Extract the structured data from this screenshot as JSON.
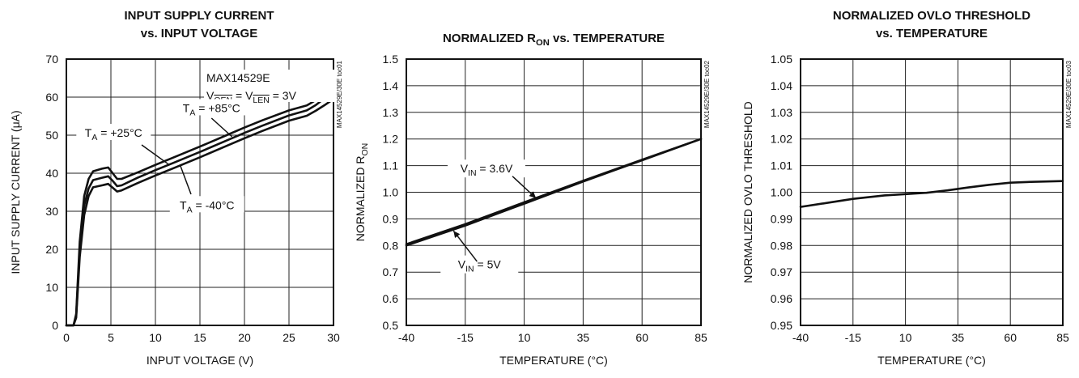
{
  "chart_data": [
    {
      "type": "line",
      "title": "INPUT SUPPLY CURRENT",
      "subtitle": "vs. INPUT VOLTAGE",
      "xlabel": "INPUT VOLTAGE (V)",
      "ylabel": "INPUT SUPPLY CURRENT (μA)",
      "xlim": [
        0,
        30
      ],
      "ylim": [
        0,
        70
      ],
      "xticks": [
        "0",
        "5",
        "10",
        "15",
        "20",
        "25",
        "30"
      ],
      "yticks": [
        "0",
        "10",
        "20",
        "30",
        "40",
        "50",
        "60",
        "70"
      ],
      "grid": true,
      "side_id": "MAX14529E/30E toc01",
      "device_label": "MAX14529E",
      "condition_label": "VOEN = VLEN = 3V",
      "series": [
        {
          "name": "TA = +85°C",
          "x": [
            0,
            0.8,
            1.1,
            1.5,
            2,
            2.5,
            3,
            4,
            4.7,
            5.2,
            5.7,
            6.2,
            8,
            10,
            12,
            15,
            18,
            20,
            22,
            25,
            27,
            28,
            29,
            30
          ],
          "y": [
            0,
            0,
            3,
            22,
            34,
            38.5,
            40.5,
            41.2,
            41.5,
            40,
            38.5,
            38.5,
            40.2,
            42.2,
            44.1,
            47,
            50,
            52,
            53.9,
            56.5,
            57.8,
            59.2,
            61.2,
            63.5
          ]
        },
        {
          "name": "TA = +25°C",
          "x": [
            0,
            0.8,
            1.1,
            1.5,
            2,
            2.5,
            3,
            4,
            4.7,
            5.2,
            5.7,
            6.2,
            8,
            10,
            12,
            15,
            18,
            20,
            22,
            25,
            27,
            28,
            29,
            30
          ],
          "y": [
            0,
            0,
            2.5,
            20,
            31.5,
            36,
            38.2,
            38.8,
            39.2,
            38,
            36.6,
            36.8,
            38.8,
            40.8,
            42.7,
            45.6,
            48.6,
            50.6,
            52.5,
            55.2,
            56.5,
            57.9,
            59.7,
            61.7
          ]
        },
        {
          "name": "TA = -40°C",
          "x": [
            0,
            0.8,
            1.1,
            1.5,
            2,
            2.5,
            3,
            4,
            4.7,
            5.2,
            5.7,
            6.2,
            8,
            10,
            12,
            15,
            18,
            20,
            22,
            25,
            27,
            28,
            29,
            30
          ],
          "y": [
            0,
            0,
            2,
            18,
            29,
            34,
            36.3,
            36.8,
            37.2,
            36.2,
            35.2,
            35.5,
            37.4,
            39.4,
            41.3,
            44.2,
            47.2,
            49.2,
            51.1,
            53.8,
            55.1,
            56.4,
            57.9,
            59.5
          ]
        }
      ],
      "labels": [
        {
          "text": "TA = +85°C",
          "x": 16.3,
          "y": 56.5
        },
        {
          "text": "TA = +25°C",
          "x": 5.3,
          "y": 50
        },
        {
          "text": "TA = -40°C",
          "x": 15.8,
          "y": 31
        }
      ]
    },
    {
      "type": "line",
      "title": "NORMALIZED RON vs. TEMPERATURE",
      "xlabel": "TEMPERATURE (°C)",
      "ylabel": "NORMALIZED RON",
      "xlim": [
        -40,
        85
      ],
      "ylim": [
        0.5,
        1.5
      ],
      "xticks": [
        "-40",
        "-15",
        "10",
        "35",
        "60",
        "85"
      ],
      "yticks": [
        "0.5",
        "0.6",
        "0.7",
        "0.8",
        "0.9",
        "1.0",
        "1.1",
        "1.2",
        "1.3",
        "1.4",
        "1.5"
      ],
      "grid": true,
      "side_id": "MAX14529E/30E toc02",
      "series": [
        {
          "name": "VIN = 3.6V",
          "x": [
            -40,
            -15,
            10,
            35,
            60,
            85
          ],
          "y": [
            0.805,
            0.88,
            0.962,
            1.043,
            1.122,
            1.2
          ]
        },
        {
          "name": "VIN = 5V",
          "x": [
            -40,
            -15,
            10,
            35,
            60,
            85
          ],
          "y": [
            0.8,
            0.875,
            0.957,
            1.04,
            1.12,
            1.2
          ]
        }
      ],
      "labels": [
        {
          "text": "VIN = 3.6V",
          "x": -6,
          "y": 1.08
        },
        {
          "text": "VIN = 5V",
          "x": -9,
          "y": 0.72
        }
      ]
    },
    {
      "type": "line",
      "title": "NORMALIZED OVLO THRESHOLD",
      "subtitle": "vs. TEMPERATURE",
      "xlabel": "TEMPERATURE (°C)",
      "ylabel": "NORMALIZED OVLO THRESHOLD",
      "xlim": [
        -40,
        85
      ],
      "ylim": [
        0.95,
        1.05
      ],
      "xticks": [
        "-40",
        "-15",
        "10",
        "35",
        "60",
        "85"
      ],
      "yticks": [
        "0.95",
        "0.96",
        "0.97",
        "0.98",
        "0.99",
        "1.00",
        "1.01",
        "1.02",
        "1.03",
        "1.04",
        "1.05"
      ],
      "grid": true,
      "side_id": "MAX14529E/30E toc03",
      "series": [
        {
          "name": "",
          "x": [
            -40,
            -25,
            -15,
            0,
            10,
            20,
            30,
            40,
            50,
            60,
            70,
            85
          ],
          "y": [
            0.9945,
            0.9963,
            0.9975,
            0.9988,
            0.9993,
            0.9998,
            1.0007,
            1.0018,
            1.0028,
            1.0036,
            1.0039,
            1.0042
          ]
        }
      ]
    }
  ]
}
